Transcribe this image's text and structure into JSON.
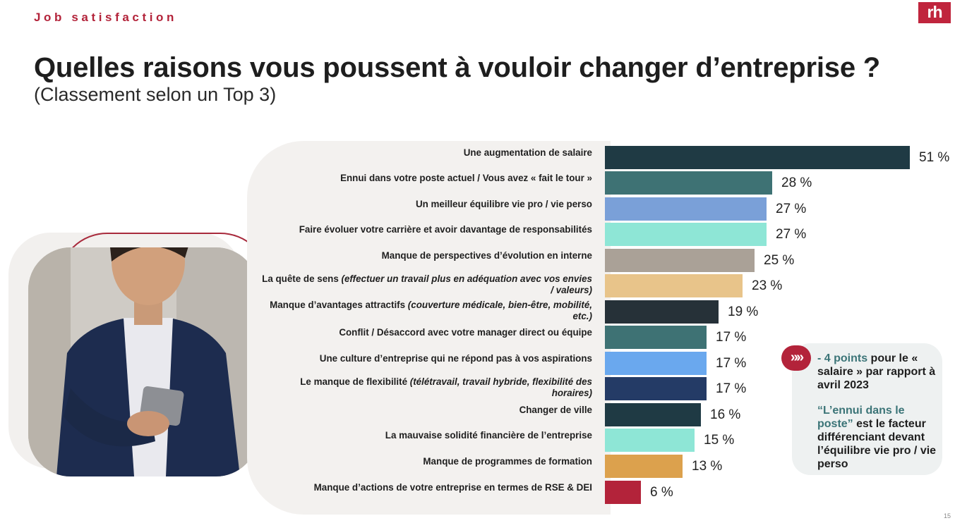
{
  "header": {
    "section": "Job satisfaction",
    "logo": "rh"
  },
  "title": "Quelles raisons vous poussent à vouloir changer d’entreprise ?",
  "subtitle": "(Classement selon un Top 3)",
  "chart_data": {
    "type": "bar",
    "orientation": "horizontal",
    "categories": [
      {
        "main": "Une augmentation de salaire",
        "detail": ""
      },
      {
        "main": "Ennui dans votre poste actuel / Vous avez « fait le tour »",
        "detail": ""
      },
      {
        "main": "Un meilleur équilibre vie pro / vie perso",
        "detail": ""
      },
      {
        "main": "Faire évoluer votre carrière et avoir davantage de responsabilités",
        "detail": ""
      },
      {
        "main": "Manque de perspectives d’évolution en interne",
        "detail": ""
      },
      {
        "main": "La quête de sens",
        "detail": "(effectuer un travail plus en adéquation avec vos envies / valeurs)"
      },
      {
        "main": "Manque d’avantages attractifs",
        "detail": "(couverture médicale, bien-être, mobilité, etc.)"
      },
      {
        "main": "Conflit / Désaccord avec votre manager direct ou équipe",
        "detail": ""
      },
      {
        "main": "Une culture d’entreprise qui ne répond pas à vos aspirations",
        "detail": ""
      },
      {
        "main": "Le manque de flexibilité",
        "detail": "(télétravail, travail hybride, flexibilité des horaires)"
      },
      {
        "main": "Changer de ville",
        "detail": ""
      },
      {
        "main": "La mauvaise solidité financière de l’entreprise",
        "detail": ""
      },
      {
        "main": "Manque de programmes de formation",
        "detail": ""
      },
      {
        "main": "Manque d’actions de votre entreprise en termes de RSE & DEI",
        "detail": ""
      }
    ],
    "values": [
      51,
      28,
      27,
      27,
      25,
      23,
      19,
      17,
      17,
      17,
      16,
      15,
      13,
      6
    ],
    "value_labels": [
      "51 %",
      "28 %",
      "27 %",
      "27 %",
      "25 %",
      "23 %",
      "19 %",
      "17 %",
      "17 %",
      "17 %",
      "16 %",
      "15 %",
      "13 %",
      "6 %"
    ],
    "colors": [
      "#1f3a44",
      "#3e7274",
      "#7aa0d8",
      "#8ee6d6",
      "#aaa197",
      "#e8c48a",
      "#263138",
      "#3e7274",
      "#6aa8ee",
      "#243b66",
      "#1f3a44",
      "#8ee6d6",
      "#dca14d",
      "#b3233a"
    ],
    "xlim": [
      0,
      51
    ],
    "grid": false,
    "legend": "none"
  },
  "callout": {
    "line1_highlight": "- 4 points",
    "line1_rest": " pour le « salaire » par rapport à avril 2023",
    "line2_highlight": "“L’ennui dans le poste”",
    "line2_rest": " est le facteur différenciant devant l’équilibre vie pro / vie perso",
    "icon": "chevron-right-double-icon"
  },
  "page_number": "15"
}
